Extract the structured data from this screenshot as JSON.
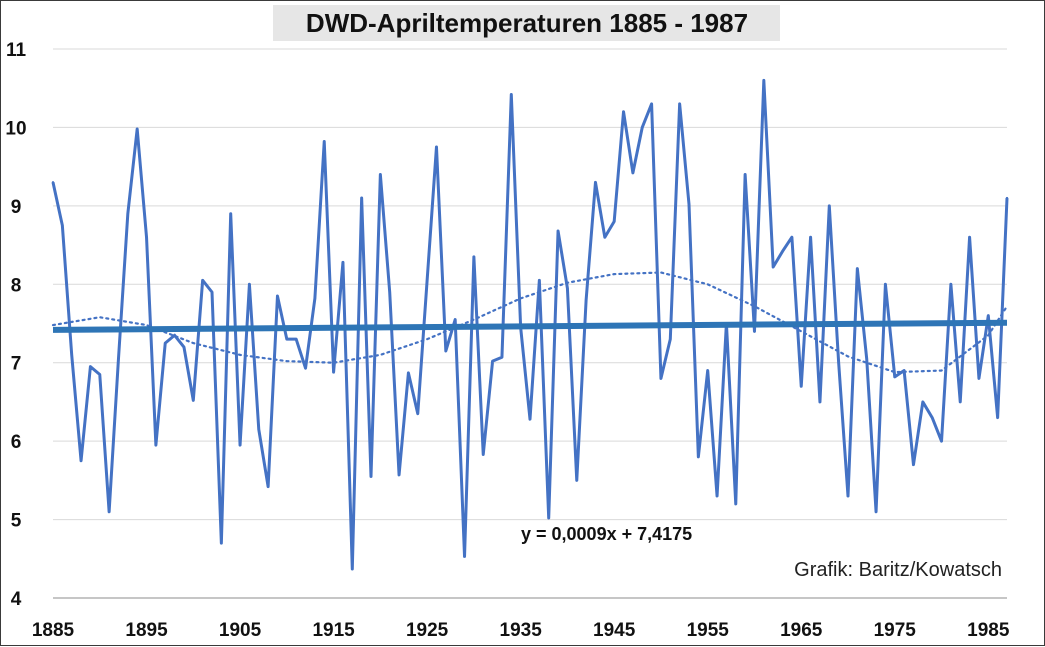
{
  "chart_data": {
    "type": "line",
    "title": "DWD-Apriltemperaturen 1885 - 1987",
    "xlabel": "",
    "ylabel": "",
    "xlim": [
      1885,
      1987
    ],
    "ylim": [
      4,
      11
    ],
    "x_ticks": [
      "1885",
      "1895",
      "1905",
      "1915",
      "1925",
      "1935",
      "1945",
      "1955",
      "1965",
      "1975",
      "1985"
    ],
    "y_ticks": [
      "4",
      "5",
      "6",
      "7",
      "8",
      "9",
      "10",
      "11"
    ],
    "grid": "horizontal",
    "legend": "none",
    "series": [
      {
        "name": "",
        "style": "solid",
        "color": "#4472c4",
        "x": [
          1885,
          1886,
          1887,
          1888,
          1889,
          1890,
          1891,
          1892,
          1893,
          1894,
          1895,
          1896,
          1897,
          1898,
          1899,
          1900,
          1901,
          1902,
          1903,
          1904,
          1905,
          1906,
          1907,
          1908,
          1909,
          1910,
          1911,
          1912,
          1913,
          1914,
          1915,
          1916,
          1917,
          1918,
          1919,
          1920,
          1921,
          1922,
          1923,
          1924,
          1925,
          1926,
          1927,
          1928,
          1929,
          1930,
          1931,
          1932,
          1933,
          1934,
          1935,
          1936,
          1937,
          1938,
          1939,
          1940,
          1941,
          1942,
          1943,
          1944,
          1945,
          1946,
          1947,
          1948,
          1949,
          1950,
          1951,
          1952,
          1953,
          1954,
          1955,
          1956,
          1957,
          1958,
          1959,
          1960,
          1961,
          1962,
          1963,
          1964,
          1965,
          1966,
          1967,
          1968,
          1969,
          1970,
          1971,
          1972,
          1973,
          1974,
          1975,
          1976,
          1977,
          1978,
          1979,
          1980,
          1981,
          1982,
          1983,
          1984,
          1985,
          1986,
          1987
        ],
        "y": [
          9.3,
          8.75,
          7.1,
          5.75,
          6.95,
          6.85,
          5.1,
          7.05,
          8.9,
          9.98,
          8.6,
          5.95,
          7.25,
          7.35,
          7.2,
          6.52,
          8.05,
          7.9,
          4.7,
          8.9,
          5.95,
          8.0,
          6.15,
          5.42,
          7.85,
          7.3,
          7.3,
          6.93,
          7.82,
          9.82,
          6.88,
          8.28,
          4.37,
          9.1,
          5.55,
          9.4,
          7.9,
          5.57,
          6.87,
          6.35,
          8.05,
          9.75,
          7.15,
          7.55,
          4.53,
          8.35,
          5.83,
          7.02,
          7.07,
          10.42,
          7.45,
          6.28,
          8.05,
          5.02,
          8.68,
          7.95,
          5.5,
          7.8,
          9.3,
          8.6,
          8.8,
          10.2,
          9.42,
          10.0,
          10.3,
          6.8,
          7.3,
          10.3,
          9.02,
          5.8,
          6.9,
          5.3,
          7.5,
          5.2,
          9.4,
          7.4,
          10.6,
          8.22,
          8.42,
          8.6,
          6.7,
          8.6,
          6.5,
          9.0,
          7.0,
          5.3,
          8.2,
          7.05,
          5.1,
          8.0,
          6.82,
          6.9,
          5.7,
          6.5,
          6.3,
          6.0,
          8.0,
          6.5,
          8.6,
          6.8,
          7.6,
          6.3,
          9.1
        ]
      },
      {
        "name": "",
        "style": "linear-trend",
        "color": "#2e75b6",
        "slope": 0.0009,
        "intercept": 7.4175
      },
      {
        "name": "",
        "style": "dotted-polynomial-trend",
        "color": "#4472c4",
        "x": [
          1885,
          1890,
          1895,
          1900,
          1905,
          1910,
          1915,
          1920,
          1925,
          1930,
          1935,
          1940,
          1945,
          1950,
          1955,
          1960,
          1965,
          1970,
          1975,
          1980,
          1985,
          1987
        ],
        "y": [
          7.48,
          7.58,
          7.48,
          7.25,
          7.1,
          7.02,
          7.0,
          7.1,
          7.3,
          7.55,
          7.82,
          8.02,
          8.13,
          8.15,
          8.0,
          7.72,
          7.4,
          7.08,
          6.88,
          6.9,
          7.35,
          7.72
        ]
      }
    ],
    "annotations": {
      "equation": "y = 0,0009x + 7,4175",
      "credit": "Grafik: Baritz/Kowatsch"
    }
  }
}
